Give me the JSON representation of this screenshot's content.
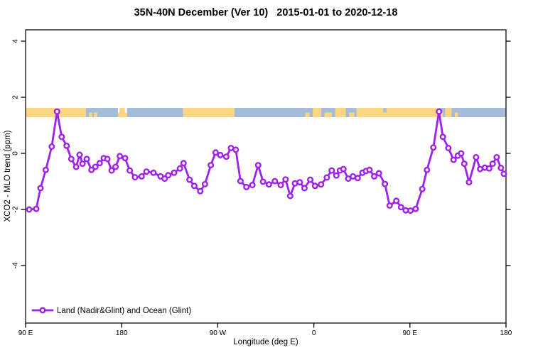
{
  "title": "35N-40N December (Ver 10)   2015-01-01 to 2020-12-18",
  "x_axis": {
    "label": "Longitude (deg E)",
    "ticks": [
      {
        "pos": 90,
        "label": "90 E"
      },
      {
        "pos": 180,
        "label": "180"
      },
      {
        "pos": 270,
        "label": "90 W"
      },
      {
        "pos": 360,
        "label": "0"
      },
      {
        "pos": 450,
        "label": "90 E"
      },
      {
        "pos": 540,
        "label": "180"
      }
    ]
  },
  "y_axis": {
    "label": "XCO2 - MLO trend (ppm)",
    "ticks": [
      {
        "value": 4,
        "label": "4"
      },
      {
        "value": 2,
        "label": "2"
      },
      {
        "value": 0,
        "label": "0"
      },
      {
        "value": -2,
        "label": "-2"
      },
      {
        "value": -4,
        "label": "-4"
      }
    ]
  },
  "legend": {
    "label": "Land (Nadir&Glint) and Ocean (Glint)"
  },
  "colors": {
    "line": "#A020F0",
    "marker_fill": "#FFFFFF",
    "land": "#FAD584",
    "ocean": "#A5BCD9",
    "axis": "#3A3A3A",
    "tick": "#000000",
    "text": "#000000"
  },
  "chart_data": {
    "type": "line",
    "title": "35N-40N December (Ver 10)   2015-01-01 to 2020-12-18",
    "xlabel": "Longitude (deg E)",
    "ylabel": "XCO2 - MLO trend (ppm)",
    "x_axis_note": "longitude axis spans 450 deg, unwrapped from 90E eastward: 90E,180,90W(=270),0(=360),90E(=450),180(=540)",
    "xlim": [
      90,
      540
    ],
    "ylim": [
      -6.05,
      4.41
    ],
    "grid": false,
    "legend_position": "bottom-left-inside",
    "marker": "open-circle",
    "series": [
      {
        "name": "Land (Nadir&Glint) and Ocean (Glint)",
        "points": [
          [
            93.3,
            -2.0
          ],
          [
            100.0,
            -1.98
          ],
          [
            104.0,
            -1.24
          ],
          [
            108.9,
            -0.59
          ],
          [
            114.5,
            0.24
          ],
          [
            119.5,
            1.49
          ],
          [
            123.8,
            0.59
          ],
          [
            128.4,
            0.27
          ],
          [
            132.8,
            -0.2
          ],
          [
            137.3,
            -0.48
          ],
          [
            140.6,
            -0.05
          ],
          [
            143.3,
            -0.37
          ],
          [
            147.3,
            -0.2
          ],
          [
            151.7,
            -0.59
          ],
          [
            155.4,
            -0.48
          ],
          [
            159.4,
            -0.35
          ],
          [
            163.2,
            -0.17
          ],
          [
            166.6,
            -0.2
          ],
          [
            170.6,
            -0.61
          ],
          [
            174.3,
            -0.48
          ],
          [
            178.3,
            -0.1
          ],
          [
            183.2,
            -0.17
          ],
          [
            187.6,
            -0.61
          ],
          [
            192.5,
            -0.85
          ],
          [
            198.7,
            -0.82
          ],
          [
            203.2,
            -0.65
          ],
          [
            209.8,
            -0.69
          ],
          [
            216.5,
            -0.82
          ],
          [
            220.3,
            -0.9
          ],
          [
            223.6,
            -0.78
          ],
          [
            229.1,
            -0.69
          ],
          [
            234.6,
            -0.54
          ],
          [
            238.0,
            -0.35
          ],
          [
            243.6,
            -0.94
          ],
          [
            248.0,
            -1.16
          ],
          [
            253.6,
            -1.35
          ],
          [
            258.0,
            -1.1
          ],
          [
            263.5,
            -0.42
          ],
          [
            268.0,
            0.03
          ],
          [
            272.4,
            -0.06
          ],
          [
            278.0,
            -0.12
          ],
          [
            282.4,
            0.19
          ],
          [
            286.9,
            0.13
          ],
          [
            291.3,
            -0.99
          ],
          [
            296.8,
            -1.2
          ],
          [
            302.4,
            -1.13
          ],
          [
            307.9,
            -0.42
          ],
          [
            312.4,
            -1.01
          ],
          [
            317.9,
            -1.11
          ],
          [
            323.5,
            -0.99
          ],
          [
            329.0,
            -1.13
          ],
          [
            333.5,
            -0.93
          ],
          [
            337.9,
            -1.52
          ],
          [
            342.3,
            -1.07
          ],
          [
            346.8,
            -1.03
          ],
          [
            351.2,
            -1.24
          ],
          [
            356.7,
            -0.94
          ],
          [
            361.1,
            -1.16
          ],
          [
            366.7,
            -1.11
          ],
          [
            372.2,
            -0.86
          ],
          [
            376.7,
            -0.61
          ],
          [
            381.1,
            -0.79
          ],
          [
            384.4,
            -0.61
          ],
          [
            387.7,
            -0.56
          ],
          [
            392.2,
            -0.9
          ],
          [
            396.6,
            -0.82
          ],
          [
            401.1,
            -0.88
          ],
          [
            405.5,
            -0.69
          ],
          [
            408.8,
            -0.63
          ],
          [
            412.2,
            -0.59
          ],
          [
            416.6,
            -0.82
          ],
          [
            421.0,
            -0.71
          ],
          [
            426.6,
            -1.09
          ],
          [
            431.0,
            -1.86
          ],
          [
            437.3,
            -1.69
          ],
          [
            441.7,
            -1.92
          ],
          [
            446.1,
            -2.03
          ],
          [
            450.5,
            -2.04
          ],
          [
            455.4,
            -1.98
          ],
          [
            461.6,
            -1.27
          ],
          [
            466.0,
            -0.59
          ],
          [
            472.0,
            0.21
          ],
          [
            477.2,
            1.49
          ],
          [
            480.9,
            0.59
          ],
          [
            486.0,
            0.19
          ],
          [
            490.9,
            -0.23
          ],
          [
            494.9,
            -0.08
          ],
          [
            498.0,
            0.0
          ],
          [
            500.9,
            -0.37
          ],
          [
            505.4,
            -1.03
          ],
          [
            512.0,
            -0.14
          ],
          [
            515.8,
            -0.56
          ],
          [
            520.2,
            -0.51
          ],
          [
            524.2,
            -0.54
          ],
          [
            527.5,
            -0.37
          ],
          [
            531.3,
            -0.14
          ],
          [
            535.3,
            -0.52
          ],
          [
            538.0,
            -0.73
          ]
        ]
      }
    ],
    "surface_band": {
      "value_top": 1.62,
      "value_bottom": 1.29,
      "segments": [
        {
          "a": 90,
          "b": 146.5,
          "c": "land",
          "h": "full"
        },
        {
          "a": 146.5,
          "b": 176.5,
          "c": "ocean",
          "h": "full"
        },
        {
          "a": 149.5,
          "b": 152.5,
          "c": "land",
          "h": "bottom"
        },
        {
          "a": 154,
          "b": 157,
          "c": "land",
          "h": "bottom"
        },
        {
          "a": 176.5,
          "b": 185,
          "c": "land",
          "h": "bottom"
        },
        {
          "a": 178,
          "b": 183,
          "c": "land",
          "h": "full"
        },
        {
          "a": 185,
          "b": 237.5,
          "c": "ocean",
          "h": "full"
        },
        {
          "a": 237.5,
          "b": 285.5,
          "c": "land",
          "h": "full"
        },
        {
          "a": 285.5,
          "b": 352,
          "c": "ocean",
          "h": "full"
        },
        {
          "a": 352,
          "b": 407.5,
          "c": "ocean",
          "h": "full"
        },
        {
          "a": 352,
          "b": 356,
          "c": "land",
          "h": "bottom"
        },
        {
          "a": 359,
          "b": 367,
          "c": "land",
          "h": "full"
        },
        {
          "a": 370,
          "b": 377,
          "c": "land",
          "h": "bottom"
        },
        {
          "a": 380,
          "b": 390,
          "c": "land",
          "h": "full"
        },
        {
          "a": 393,
          "b": 398,
          "c": "land",
          "h": "bottom"
        },
        {
          "a": 400,
          "b": 407.5,
          "c": "land",
          "h": "full"
        },
        {
          "a": 407.5,
          "b": 477,
          "c": "land",
          "h": "full"
        },
        {
          "a": 425,
          "b": 428,
          "c": "ocean",
          "h": "top"
        },
        {
          "a": 477,
          "b": 497,
          "c": "ocean",
          "h": "full"
        },
        {
          "a": 477,
          "b": 481,
          "c": "land",
          "h": "bottom"
        },
        {
          "a": 483,
          "b": 489,
          "c": "land",
          "h": "full"
        },
        {
          "a": 492,
          "b": 495,
          "c": "land",
          "h": "bottom"
        },
        {
          "a": 497,
          "b": 540,
          "c": "ocean",
          "h": "full"
        }
      ]
    }
  }
}
